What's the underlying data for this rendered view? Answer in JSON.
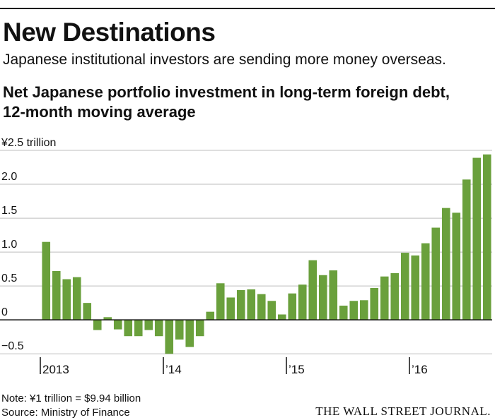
{
  "header": {
    "title": "New Destinations",
    "dek": "Japanese institutional investors are sending more money overseas.",
    "subtitle_line1": "Net Japanese portfolio investment in long-term foreign debt,",
    "subtitle_line2": "12-month moving average"
  },
  "footer": {
    "note": "Note: ¥1 trillion = $9.94 billion",
    "source": "Source: Ministry of Finance",
    "brand": "THE WALL STREET JOURNAL."
  },
  "colors": {
    "bar": "#6aa03c",
    "grid": "#bdbdbd",
    "zero": "#111111",
    "text": "#111111"
  },
  "chart_data": {
    "type": "bar",
    "title": "Net Japanese portfolio investment in long-term foreign debt, 12-month moving average",
    "ylabel": "¥ trillion",
    "ylim": [
      -0.55,
      2.5
    ],
    "ytick_values": [
      2.5,
      2.0,
      1.5,
      1.0,
      0.5,
      0,
      -0.5
    ],
    "ytick_labels": [
      "¥2.5 trillion",
      "2.0",
      "1.5",
      "1.0",
      "0.5",
      "0",
      "−0.5"
    ],
    "xtick_labels": [
      "2013",
      "’14",
      "’15",
      "’16"
    ],
    "xtick_month_index": [
      0,
      12,
      24,
      36
    ],
    "categories": [
      "Jan 2013",
      "Feb 2013",
      "Mar 2013",
      "Apr 2013",
      "May 2013",
      "Jun 2013",
      "Jul 2013",
      "Aug 2013",
      "Sep 2013",
      "Oct 2013",
      "Nov 2013",
      "Dec 2013",
      "Jan 2014",
      "Feb 2014",
      "Mar 2014",
      "Apr 2014",
      "May 2014",
      "Jun 2014",
      "Jul 2014",
      "Aug 2014",
      "Sep 2014",
      "Oct 2014",
      "Nov 2014",
      "Dec 2014",
      "Jan 2015",
      "Feb 2015",
      "Mar 2015",
      "Apr 2015",
      "May 2015",
      "Jun 2015",
      "Jul 2015",
      "Aug 2015",
      "Sep 2015",
      "Oct 2015",
      "Nov 2015",
      "Dec 2015",
      "Jan 2016",
      "Feb 2016",
      "Mar 2016",
      "Apr 2016",
      "May 2016",
      "Jun 2016",
      "Jul 2016",
      "Aug 2016"
    ],
    "values": [
      1.15,
      0.72,
      0.6,
      0.63,
      0.25,
      -0.15,
      0.04,
      -0.14,
      -0.24,
      -0.24,
      -0.15,
      -0.24,
      -0.5,
      -0.29,
      -0.4,
      -0.24,
      0.12,
      0.54,
      0.33,
      0.44,
      0.45,
      0.38,
      0.28,
      0.08,
      0.39,
      0.52,
      0.88,
      0.66,
      0.73,
      0.21,
      0.28,
      0.29,
      0.47,
      0.64,
      0.69,
      0.99,
      0.95,
      1.13,
      1.36,
      1.65,
      1.58,
      2.07,
      2.39,
      2.44
    ]
  }
}
